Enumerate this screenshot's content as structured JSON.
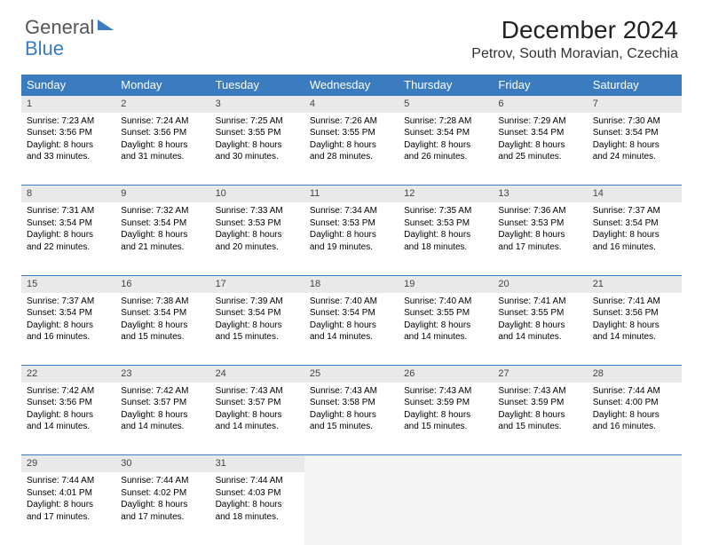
{
  "brand": {
    "part1": "General",
    "part2": "Blue"
  },
  "title": "December 2024",
  "location": "Petrov, South Moravian, Czechia",
  "colors": {
    "header_bg": "#3b7bbf",
    "header_text": "#ffffff",
    "daynum_bg": "#e9e9e9",
    "rule": "#3b7bbf",
    "empty_bg": "#f4f4f4",
    "page_bg": "#ffffff",
    "text": "#000000"
  },
  "weekdays": [
    "Sunday",
    "Monday",
    "Tuesday",
    "Wednesday",
    "Thursday",
    "Friday",
    "Saturday"
  ],
  "weeks": [
    [
      {
        "n": "1",
        "sr": "7:23 AM",
        "ss": "3:56 PM",
        "dl": "8 hours and 33 minutes."
      },
      {
        "n": "2",
        "sr": "7:24 AM",
        "ss": "3:56 PM",
        "dl": "8 hours and 31 minutes."
      },
      {
        "n": "3",
        "sr": "7:25 AM",
        "ss": "3:55 PM",
        "dl": "8 hours and 30 minutes."
      },
      {
        "n": "4",
        "sr": "7:26 AM",
        "ss": "3:55 PM",
        "dl": "8 hours and 28 minutes."
      },
      {
        "n": "5",
        "sr": "7:28 AM",
        "ss": "3:54 PM",
        "dl": "8 hours and 26 minutes."
      },
      {
        "n": "6",
        "sr": "7:29 AM",
        "ss": "3:54 PM",
        "dl": "8 hours and 25 minutes."
      },
      {
        "n": "7",
        "sr": "7:30 AM",
        "ss": "3:54 PM",
        "dl": "8 hours and 24 minutes."
      }
    ],
    [
      {
        "n": "8",
        "sr": "7:31 AM",
        "ss": "3:54 PM",
        "dl": "8 hours and 22 minutes."
      },
      {
        "n": "9",
        "sr": "7:32 AM",
        "ss": "3:54 PM",
        "dl": "8 hours and 21 minutes."
      },
      {
        "n": "10",
        "sr": "7:33 AM",
        "ss": "3:53 PM",
        "dl": "8 hours and 20 minutes."
      },
      {
        "n": "11",
        "sr": "7:34 AM",
        "ss": "3:53 PM",
        "dl": "8 hours and 19 minutes."
      },
      {
        "n": "12",
        "sr": "7:35 AM",
        "ss": "3:53 PM",
        "dl": "8 hours and 18 minutes."
      },
      {
        "n": "13",
        "sr": "7:36 AM",
        "ss": "3:53 PM",
        "dl": "8 hours and 17 minutes."
      },
      {
        "n": "14",
        "sr": "7:37 AM",
        "ss": "3:54 PM",
        "dl": "8 hours and 16 minutes."
      }
    ],
    [
      {
        "n": "15",
        "sr": "7:37 AM",
        "ss": "3:54 PM",
        "dl": "8 hours and 16 minutes."
      },
      {
        "n": "16",
        "sr": "7:38 AM",
        "ss": "3:54 PM",
        "dl": "8 hours and 15 minutes."
      },
      {
        "n": "17",
        "sr": "7:39 AM",
        "ss": "3:54 PM",
        "dl": "8 hours and 15 minutes."
      },
      {
        "n": "18",
        "sr": "7:40 AM",
        "ss": "3:54 PM",
        "dl": "8 hours and 14 minutes."
      },
      {
        "n": "19",
        "sr": "7:40 AM",
        "ss": "3:55 PM",
        "dl": "8 hours and 14 minutes."
      },
      {
        "n": "20",
        "sr": "7:41 AM",
        "ss": "3:55 PM",
        "dl": "8 hours and 14 minutes."
      },
      {
        "n": "21",
        "sr": "7:41 AM",
        "ss": "3:56 PM",
        "dl": "8 hours and 14 minutes."
      }
    ],
    [
      {
        "n": "22",
        "sr": "7:42 AM",
        "ss": "3:56 PM",
        "dl": "8 hours and 14 minutes."
      },
      {
        "n": "23",
        "sr": "7:42 AM",
        "ss": "3:57 PM",
        "dl": "8 hours and 14 minutes."
      },
      {
        "n": "24",
        "sr": "7:43 AM",
        "ss": "3:57 PM",
        "dl": "8 hours and 14 minutes."
      },
      {
        "n": "25",
        "sr": "7:43 AM",
        "ss": "3:58 PM",
        "dl": "8 hours and 15 minutes."
      },
      {
        "n": "26",
        "sr": "7:43 AM",
        "ss": "3:59 PM",
        "dl": "8 hours and 15 minutes."
      },
      {
        "n": "27",
        "sr": "7:43 AM",
        "ss": "3:59 PM",
        "dl": "8 hours and 15 minutes."
      },
      {
        "n": "28",
        "sr": "7:44 AM",
        "ss": "4:00 PM",
        "dl": "8 hours and 16 minutes."
      }
    ],
    [
      {
        "n": "29",
        "sr": "7:44 AM",
        "ss": "4:01 PM",
        "dl": "8 hours and 17 minutes."
      },
      {
        "n": "30",
        "sr": "7:44 AM",
        "ss": "4:02 PM",
        "dl": "8 hours and 17 minutes."
      },
      {
        "n": "31",
        "sr": "7:44 AM",
        "ss": "4:03 PM",
        "dl": "8 hours and 18 minutes."
      },
      null,
      null,
      null,
      null
    ]
  ],
  "labels": {
    "sunrise": "Sunrise:",
    "sunset": "Sunset:",
    "daylight": "Daylight:"
  }
}
